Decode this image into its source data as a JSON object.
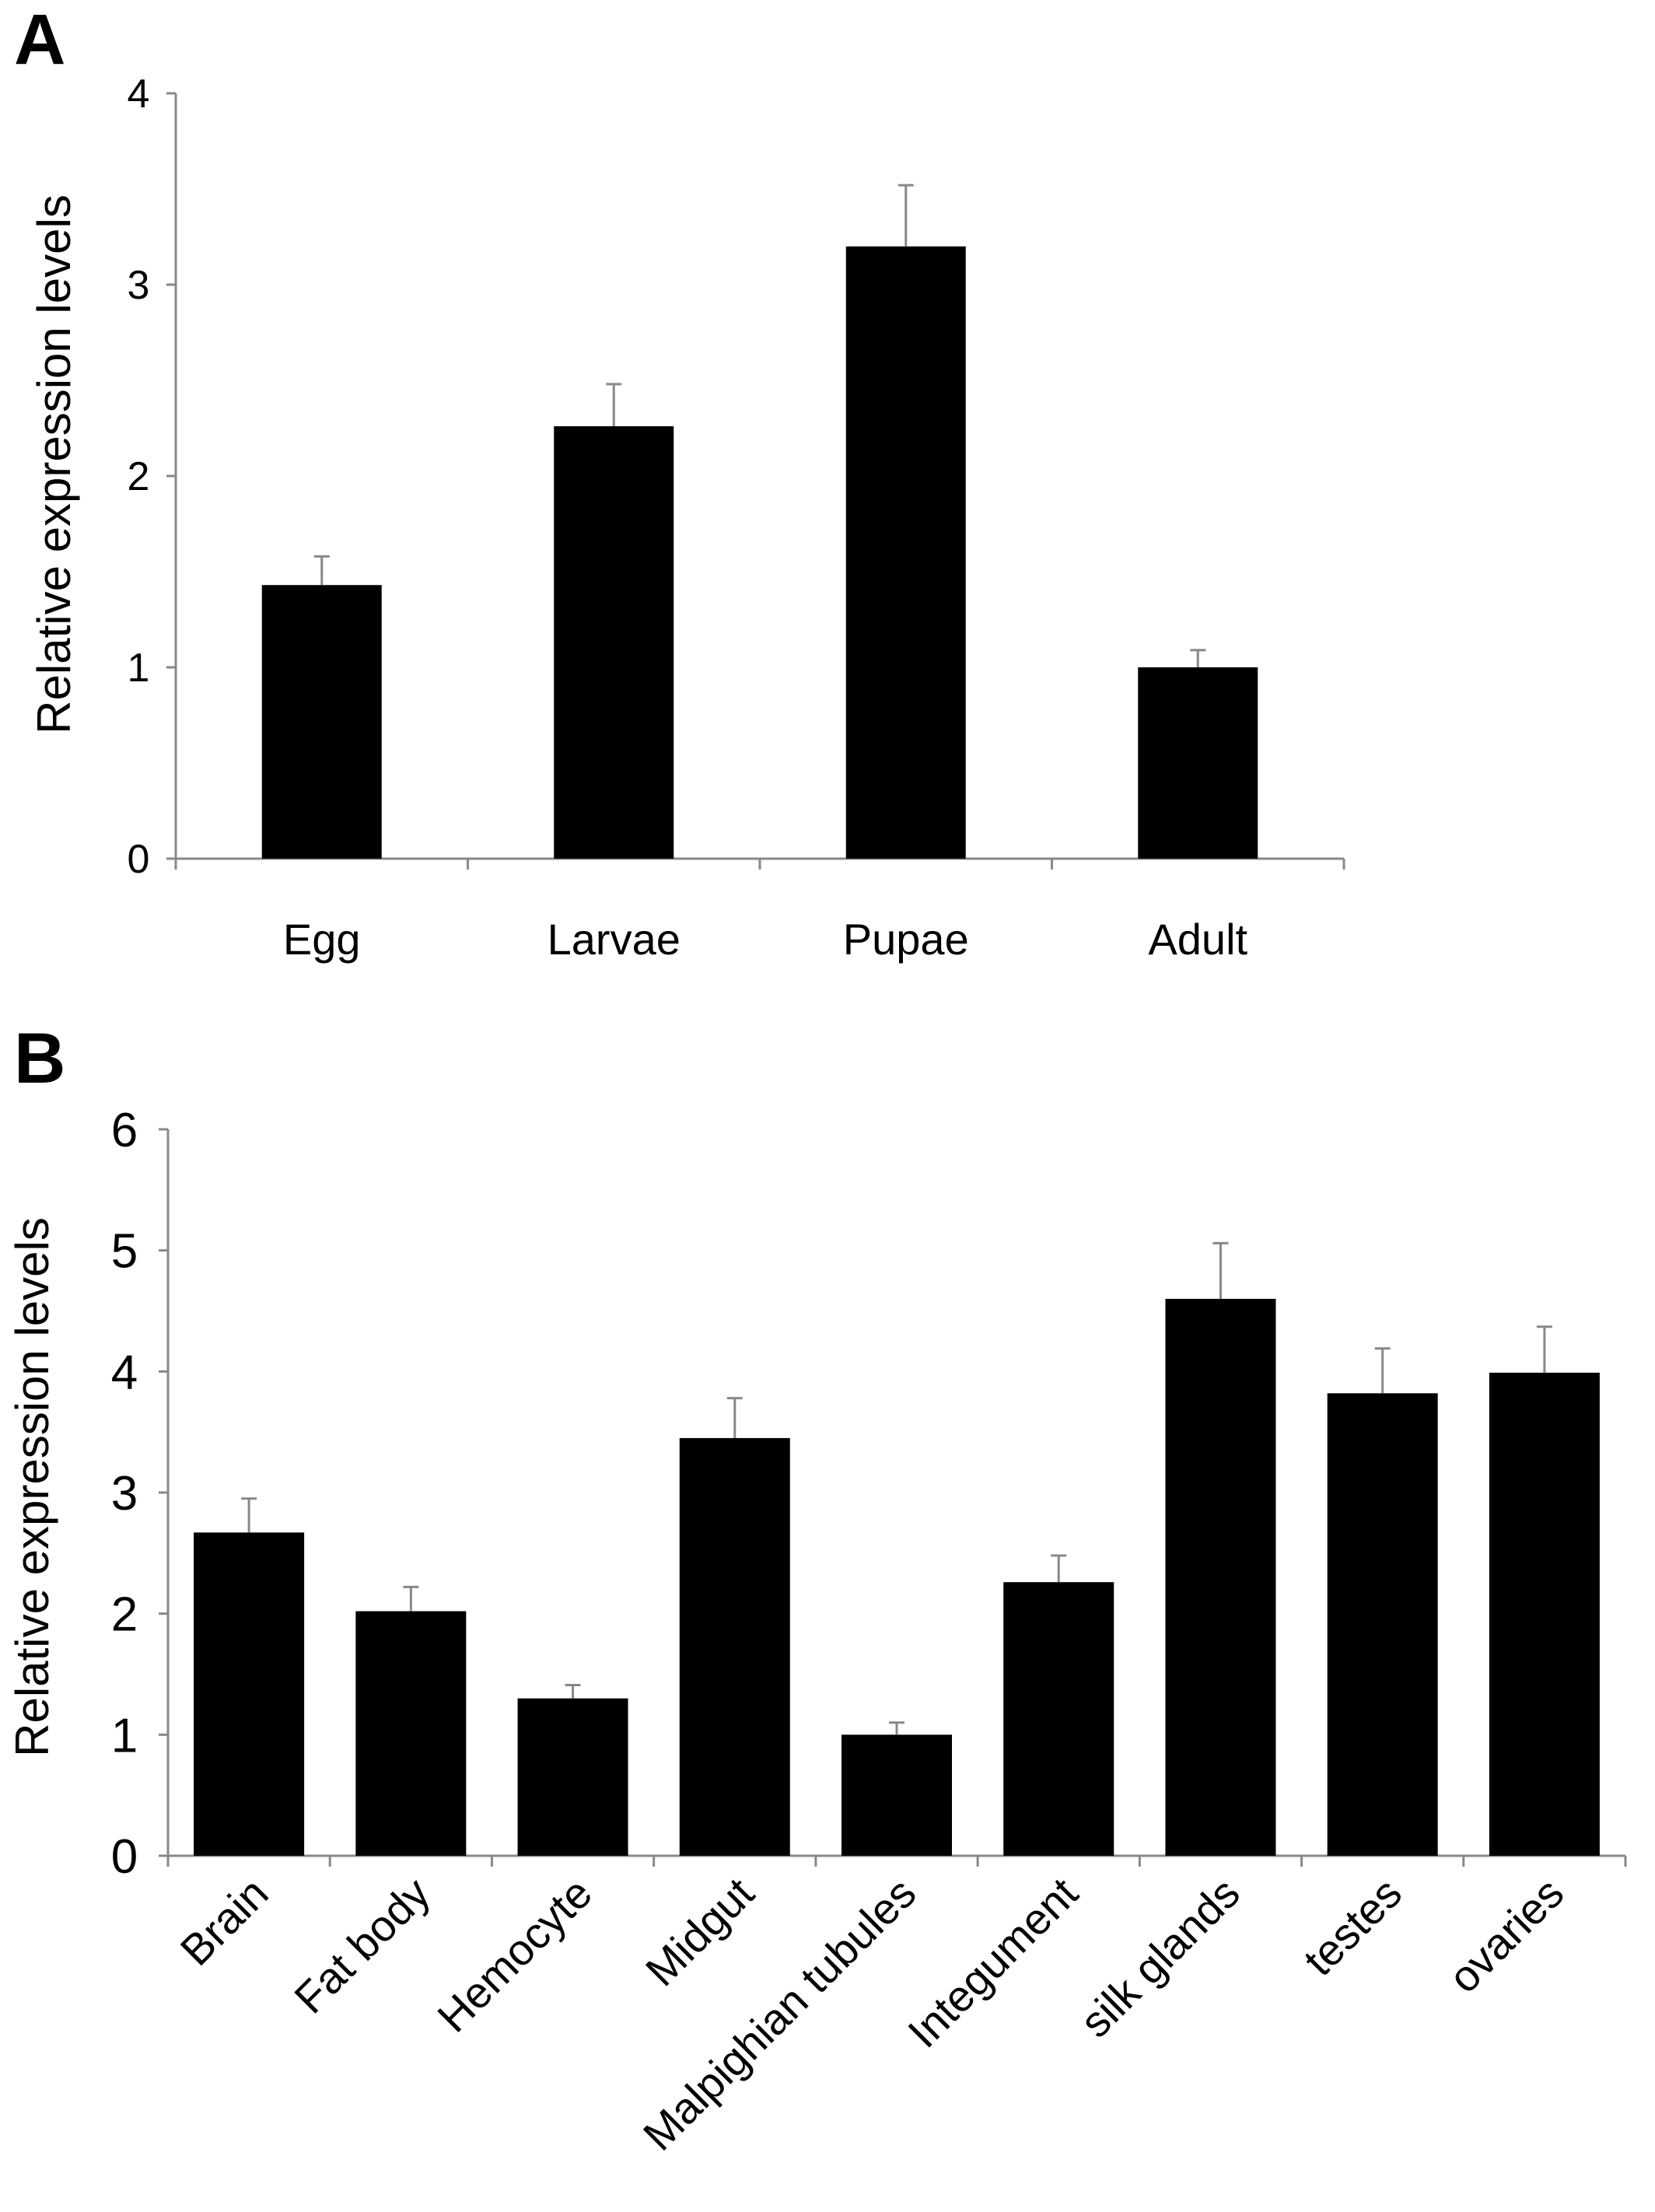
{
  "panels": [
    {
      "label": "A",
      "chart_data": {
        "type": "bar",
        "categories": [
          "Egg",
          "Larvae",
          "Pupae",
          "Adult"
        ],
        "values": [
          1.43,
          2.26,
          3.2,
          1.0
        ],
        "errors": [
          0.15,
          0.22,
          0.32,
          0.09
        ],
        "ylabel": "Relative expression levels",
        "ylim": [
          0,
          4
        ],
        "yticks": [
          "0",
          "1",
          "2",
          "3",
          "4"
        ],
        "bar_color": "#000000",
        "grid": false,
        "legend": "none"
      }
    },
    {
      "label": "B",
      "chart_data": {
        "type": "bar",
        "categories": [
          "Brain",
          "Fat body",
          "Hemocyte",
          "Midgut",
          "Malpighian tubules",
          "Integument",
          "silk glands",
          "testes",
          "ovaries"
        ],
        "values": [
          2.67,
          2.02,
          1.3,
          3.45,
          1.0,
          2.26,
          4.6,
          3.82,
          3.99
        ],
        "errors": [
          0.28,
          0.2,
          0.11,
          0.33,
          0.1,
          0.22,
          0.46,
          0.37,
          0.38
        ],
        "ylabel": "Relative expression levels",
        "ylim": [
          0,
          6
        ],
        "yticks": [
          "0",
          "1",
          "2",
          "3",
          "4",
          "5",
          "6"
        ],
        "bar_color": "#000000",
        "grid": false,
        "legend": "none",
        "x_label_rotation": "45deg"
      }
    }
  ]
}
